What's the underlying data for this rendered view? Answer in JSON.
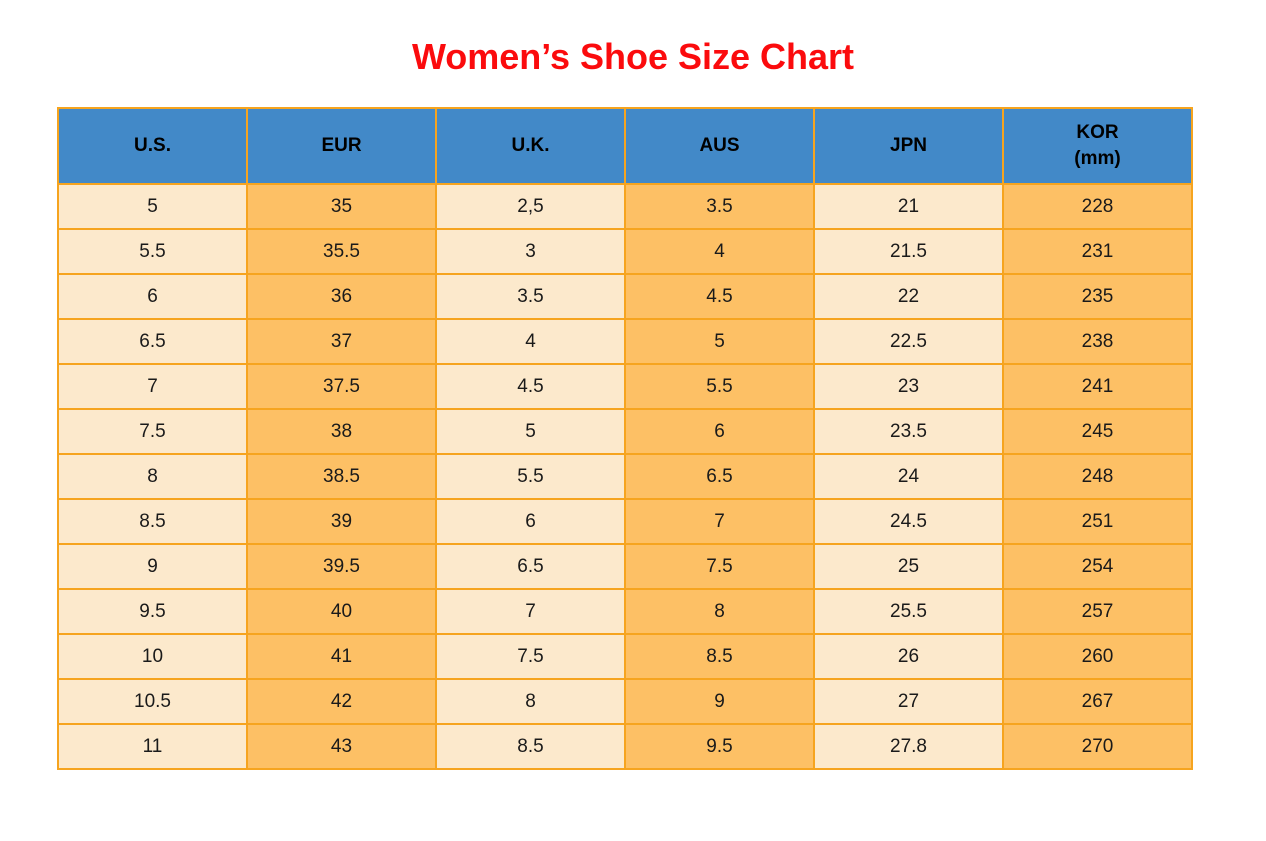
{
  "title": {
    "text": "Women’s Shoe Size Chart"
  },
  "colors": {
    "page_bg": "#FFFFFF",
    "title": "#FB0B0D",
    "header_bg": "#4289C8",
    "header_text": "#000000",
    "column_light": "#FCE9CC",
    "column_dark": "#FDC065",
    "border": "#F6A41F",
    "cell_text": "#1A1A1A"
  },
  "table": {
    "header": [
      {
        "id": "us",
        "label": "U.S.",
        "sub": ""
      },
      {
        "id": "eur",
        "label": "EUR",
        "sub": ""
      },
      {
        "id": "uk",
        "label": "U.K.",
        "sub": ""
      },
      {
        "id": "aus",
        "label": "AUS",
        "sub": ""
      },
      {
        "id": "jpn",
        "label": "JPN",
        "sub": ""
      },
      {
        "id": "kor",
        "label": "KOR",
        "sub": "(mm)"
      }
    ]
  },
  "chart_data": {
    "type": "table",
    "title": "Women’s Shoe Size Chart",
    "columns": [
      "U.S.",
      "EUR",
      "U.K.",
      "AUS",
      "JPN",
      "KOR (mm)"
    ],
    "rows": [
      [
        "5",
        "35",
        "2,5",
        "3.5",
        "21",
        "228"
      ],
      [
        "5.5",
        "35.5",
        "3",
        "4",
        "21.5",
        "231"
      ],
      [
        "6",
        "36",
        "3.5",
        "4.5",
        "22",
        "235"
      ],
      [
        "6.5",
        "37",
        "4",
        "5",
        "22.5",
        "238"
      ],
      [
        "7",
        "37.5",
        "4.5",
        "5.5",
        "23",
        "241"
      ],
      [
        "7.5",
        "38",
        "5",
        "6",
        "23.5",
        "245"
      ],
      [
        "8",
        "38.5",
        "5.5",
        "6.5",
        "24",
        "248"
      ],
      [
        "8.5",
        "39",
        "6",
        "7",
        "24.5",
        "251"
      ],
      [
        "9",
        "39.5",
        "6.5",
        "7.5",
        "25",
        "254"
      ],
      [
        "9.5",
        "40",
        "7",
        "8",
        "25.5",
        "257"
      ],
      [
        "10",
        "41",
        "7.5",
        "8.5",
        "26",
        "260"
      ],
      [
        "10.5",
        "42",
        "8",
        "9",
        "27",
        "267"
      ],
      [
        "11",
        "43",
        "8.5",
        "9.5",
        "27.8",
        "270"
      ]
    ]
  }
}
